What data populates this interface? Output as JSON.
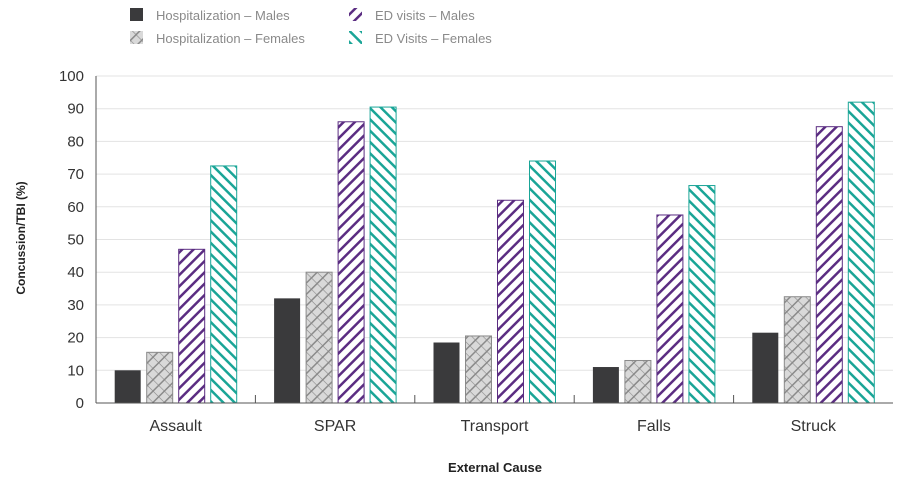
{
  "chart_data": {
    "type": "bar",
    "xlabel": "External Cause",
    "ylabel": "Concussion/TBI (%)",
    "ylim": [
      0,
      100
    ],
    "yticks": [
      0,
      10,
      20,
      30,
      40,
      50,
      60,
      70,
      80,
      90,
      100
    ],
    "grid": true,
    "legend_position": "top-left",
    "categories": [
      "Assault",
      "SPAR",
      "Transport",
      "Falls",
      "Struck"
    ],
    "series": [
      {
        "name": "Hospitalization – Males",
        "values": [
          10,
          32,
          18.5,
          11,
          21.5
        ],
        "color": "#3a3a3c",
        "pattern": "solid"
      },
      {
        "name": "Hospitalization – Females",
        "values": [
          15.5,
          40,
          20.5,
          13,
          32.5
        ],
        "color": "#8a8a8a",
        "pattern": "crosshatch"
      },
      {
        "name": "ED visits – Males",
        "values": [
          47,
          86,
          62,
          57.5,
          84.5
        ],
        "color": "#5b2d82",
        "pattern": "diagonal"
      },
      {
        "name": "ED Visits – Females",
        "values": [
          72.5,
          90.5,
          74,
          66.5,
          92
        ],
        "color": "#1aa597",
        "pattern": "diagonal"
      }
    ]
  }
}
